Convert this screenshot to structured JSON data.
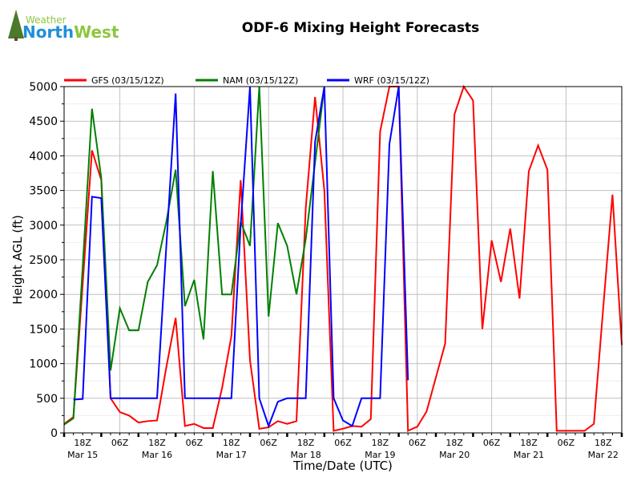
{
  "logo": {
    "line1": "Weather",
    "line2a": "North",
    "line2b": "West"
  },
  "chart_data": {
    "type": "line",
    "title": "ODF-6 Mixing Height Forecasts",
    "xlabel": "Time/Date (UTC)",
    "ylabel": "Height AGL (ft)",
    "ylim": [
      0,
      5000
    ],
    "yticks": [
      0,
      500,
      1000,
      1500,
      2000,
      2500,
      3000,
      3500,
      4000,
      4500,
      5000
    ],
    "x_start": "12Z Mar 15",
    "x_step_hours": 3,
    "x_steps": 60,
    "xtick_labels": [
      {
        "i": 2,
        "label": "18Z",
        "date": "Mar 15"
      },
      {
        "i": 6,
        "label": "06Z"
      },
      {
        "i": 10,
        "label": "18Z",
        "date": "Mar 16"
      },
      {
        "i": 14,
        "label": "06Z"
      },
      {
        "i": 18,
        "label": "18Z",
        "date": "Mar 17"
      },
      {
        "i": 22,
        "label": "06Z"
      },
      {
        "i": 26,
        "label": "18Z",
        "date": "Mar 18"
      },
      {
        "i": 30,
        "label": "06Z"
      },
      {
        "i": 34,
        "label": "18Z",
        "date": "Mar 19"
      },
      {
        "i": 38,
        "label": "06Z"
      },
      {
        "i": 42,
        "label": "18Z",
        "date": "Mar 20"
      },
      {
        "i": 46,
        "label": "06Z"
      },
      {
        "i": 50,
        "label": "18Z",
        "date": "Mar 21"
      },
      {
        "i": 54,
        "label": "06Z"
      },
      {
        "i": 58,
        "label": "18Z",
        "date": "Mar 22"
      }
    ],
    "legend_position": "top",
    "series": [
      {
        "name": "GFS (03/15/12Z)",
        "color": "#ff0000",
        "start": 0,
        "values": [
          130,
          230,
          2150,
          4080,
          3650,
          500,
          300,
          250,
          150,
          170,
          180,
          950,
          1660,
          100,
          130,
          70,
          70,
          650,
          1400,
          3650,
          1050,
          60,
          80,
          170,
          130,
          170,
          3250,
          4850,
          3500,
          30,
          60,
          100,
          90,
          200,
          4350,
          5000,
          5000,
          30,
          90,
          310,
          800,
          1290,
          4600,
          5000,
          4800,
          1500,
          2780,
          2180,
          2950,
          1940,
          3780,
          4150,
          3800,
          30,
          30,
          30,
          30,
          130,
          1800,
          3440,
          1270
        ]
      },
      {
        "name": "NAM (03/15/12Z)",
        "color": "#008000",
        "start": 0,
        "values": [
          120,
          210,
          2400,
          4680,
          3680,
          900,
          1800,
          1480,
          1480,
          2180,
          2420,
          3050,
          3800,
          1830,
          2210,
          1350,
          3780,
          2000,
          2000,
          3050,
          2700,
          5000,
          1680,
          3030,
          2700,
          2000,
          2800,
          3900,
          5000
        ]
      },
      {
        "name": "WRF (03/15/12Z)",
        "color": "#0000ff",
        "start": 1,
        "values": [
          480,
          490,
          3410,
          3390,
          500,
          500,
          500,
          500,
          500,
          500,
          2700,
          4900,
          500,
          500,
          500,
          500,
          500,
          500,
          3000,
          5000,
          500,
          100,
          450,
          500,
          500,
          500,
          4200,
          5000,
          500,
          180,
          100,
          500,
          500,
          500,
          4170,
          5000,
          760
        ]
      }
    ]
  }
}
